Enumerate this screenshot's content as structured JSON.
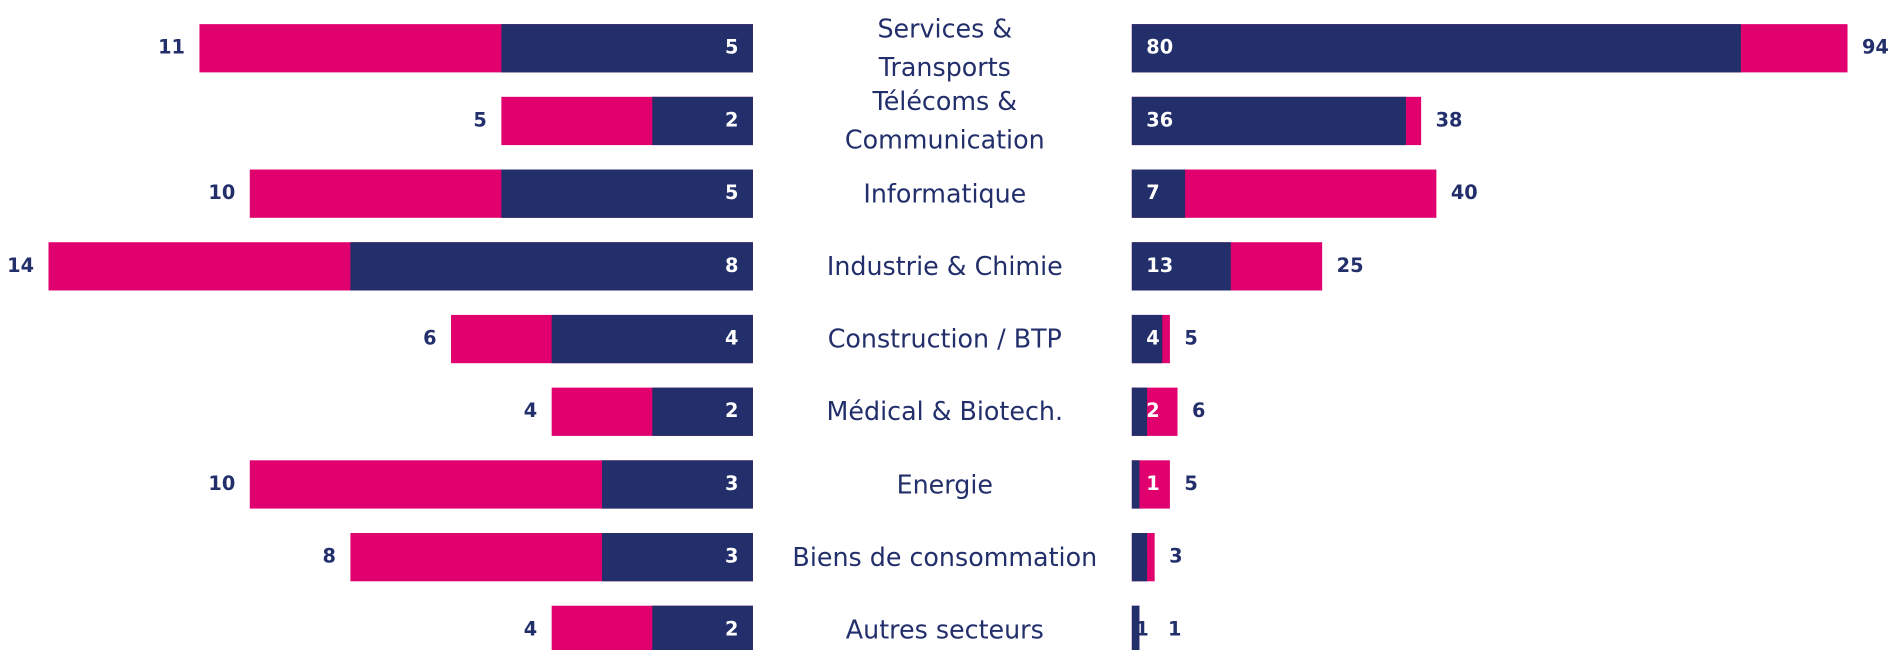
{
  "chart_data": [
    {
      "type": "bar",
      "orientation": "horizontal-left",
      "categories": [
        "Services &\nTransports",
        "Télécoms &\nCommunication",
        "Informatique",
        "Industrie & Chimie",
        "Construction / BTP",
        "Médical & Biotech.",
        "Energie",
        "Biens de consommation",
        "Autres secteurs"
      ],
      "series": [
        {
          "color": "#e0006e",
          "values": [
            11,
            5,
            10,
            14,
            6,
            4,
            10,
            8,
            4
          ]
        },
        {
          "color": "#232f6b",
          "values": [
            5,
            2,
            5,
            8,
            4,
            2,
            3,
            3,
            2
          ]
        }
      ]
    },
    {
      "type": "bar",
      "orientation": "horizontal-right",
      "series": [
        {
          "color": "#e0006e",
          "values": [
            94,
            38,
            40,
            25,
            5,
            6,
            5,
            3,
            1
          ]
        },
        {
          "color": "#232f6b",
          "values": [
            80,
            36,
            7,
            13,
            4,
            2,
            1,
            2,
            1
          ]
        }
      ]
    }
  ]
}
